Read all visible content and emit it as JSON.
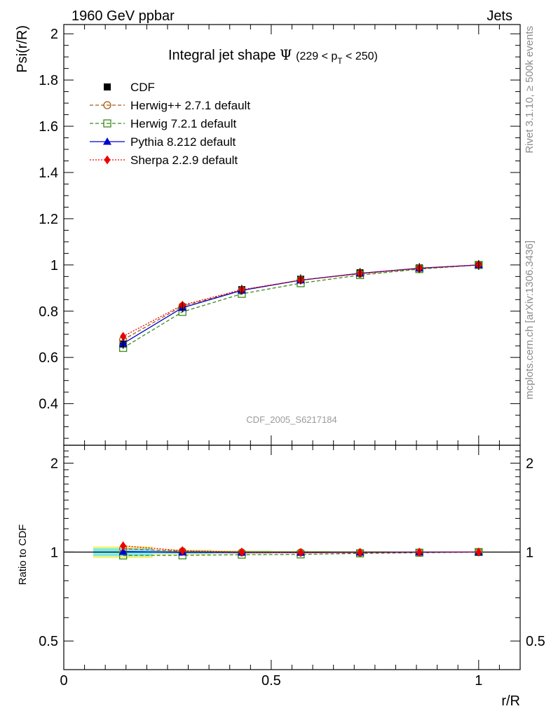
{
  "header": {
    "left": "1960 GeV ppbar",
    "right": "Jets"
  },
  "side_labels": {
    "rivet": "Rivet 3.1.10, ≥ 500k events",
    "mcplots": "mcplots.cern.ch [arXiv:1306.3436]"
  },
  "watermark": "CDF_2005_S6217184",
  "chart_data": [
    {
      "type": "line",
      "panel": "main",
      "title": {
        "main": "Integral jet shape",
        "symbol": "Ψ",
        "range_open": "(229 < p",
        "range_sub": "T",
        "range_close": " < 250)"
      },
      "xlabel": "r/R",
      "ylabel": "Psi(r/R)",
      "xlim": [
        0,
        1.1
      ],
      "ylim": [
        0.22,
        2.04
      ],
      "x": [
        0.143,
        0.286,
        0.429,
        0.571,
        0.714,
        0.857,
        1.0
      ],
      "yticks": [
        0.4,
        0.6,
        0.8,
        1,
        1.2,
        1.4,
        1.6,
        1.8,
        2
      ],
      "ytick_labels": [
        "0.4",
        "0.6",
        "0.8",
        "1",
        "1.2",
        "1.4",
        "1.6",
        "1.8",
        "2"
      ],
      "legend_position": "top-left",
      "series": [
        {
          "name": "CDF",
          "color": "#000000",
          "marker": "square-filled",
          "line": "none",
          "values": [
            0.658,
            0.817,
            0.893,
            0.938,
            0.966,
            0.987,
            1.0
          ]
        },
        {
          "name": "Herwig++ 2.7.1 default",
          "color": "#a85a10",
          "marker": "circle-open",
          "line": "dashed",
          "values": [
            0.676,
            0.822,
            0.89,
            0.935,
            0.962,
            0.985,
            1.0
          ]
        },
        {
          "name": "Herwig 7.2.1 default",
          "color": "#3a8a1a",
          "marker": "square-open",
          "line": "dashed",
          "values": [
            0.641,
            0.797,
            0.875,
            0.921,
            0.956,
            0.982,
            1.0
          ]
        },
        {
          "name": "Pythia 8.212 default",
          "color": "#0000cc",
          "marker": "triangle-filled",
          "line": "solid",
          "values": [
            0.66,
            0.815,
            0.89,
            0.934,
            0.964,
            0.986,
            1.0
          ]
        },
        {
          "name": "Sherpa 2.2.9 default",
          "color": "#ee0000",
          "marker": "diamond-filled",
          "line": "dotted",
          "values": [
            0.691,
            0.826,
            0.893,
            0.934,
            0.963,
            0.986,
            1.0
          ]
        }
      ]
    },
    {
      "type": "line",
      "panel": "ratio",
      "ylabel": "Ratio to CDF",
      "xlabel": "r/R",
      "xlim": [
        0,
        1.1
      ],
      "ylim": [
        0.4,
        2.3
      ],
      "yscale": "log",
      "xticks": [
        0,
        0.5,
        1
      ],
      "xtick_labels": [
        "0",
        "0.5",
        "1"
      ],
      "yticks": [
        0.5,
        1,
        2
      ],
      "ytick_labels": [
        "0.5",
        "1",
        "2"
      ],
      "band": {
        "x_lo": [
          0.071,
          0.214,
          0.357,
          0.5,
          0.643,
          0.786,
          0.929
        ],
        "x_hi": [
          0.214,
          0.357,
          0.5,
          0.643,
          0.786,
          0.929,
          1.071
        ],
        "stat_half": [
          0.03,
          0.012,
          0.008,
          0.006,
          0.004,
          0.003,
          0.002
        ],
        "total_half": [
          0.045,
          0.02,
          0.014,
          0.01,
          0.007,
          0.005,
          0.003
        ],
        "stat_color": "#7fe8e8",
        "total_color": "#f2f27a"
      },
      "series": [
        {
          "name": "Herwig++ 2.7.1 default",
          "values": [
            1.027,
            1.006,
            0.997,
            0.997,
            0.996,
            0.998,
            1.0
          ]
        },
        {
          "name": "Herwig 7.2.1 default",
          "values": [
            0.974,
            0.975,
            0.98,
            0.982,
            0.99,
            0.995,
            1.0
          ]
        },
        {
          "name": "Pythia 8.212 default",
          "values": [
            1.003,
            0.998,
            0.997,
            0.996,
            0.998,
            0.999,
            1.0
          ]
        },
        {
          "name": "Sherpa 2.2.9 default",
          "values": [
            1.05,
            1.011,
            1.0,
            0.996,
            0.997,
            0.999,
            1.0
          ]
        }
      ]
    }
  ]
}
